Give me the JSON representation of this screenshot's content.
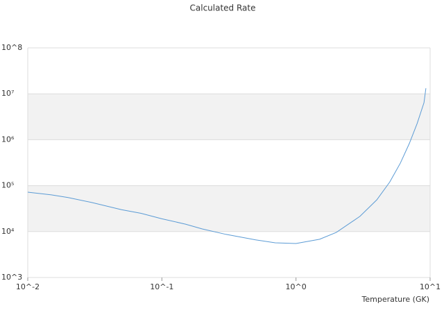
{
  "chart_data": {
    "type": "line",
    "title": "Calculated Rate",
    "x_label": "Temperature (GK)",
    "xscale": "log",
    "yscale": "log",
    "grid": true,
    "color": "#5b9bd5",
    "x": [
      0.01,
      0.015,
      0.02,
      0.03,
      0.05,
      0.07,
      0.1,
      0.15,
      0.2,
      0.3,
      0.5,
      0.7,
      1,
      1.5,
      2,
      3,
      4,
      5,
      6,
      7,
      8,
      9,
      9.3
    ],
    "values": [
      72000,
      63000,
      55000,
      43000,
      30000,
      25000,
      19000,
      14500,
      11400,
      8700,
      6600,
      5700,
      5500,
      6800,
      9600,
      21500,
      49000,
      120000,
      310000,
      830000,
      2250000,
      6400000,
      13200000
    ],
    "xlim": [
      0.01,
      10
    ],
    "xticks": [
      {
        "value": 0.01,
        "label": "10^-2"
      },
      {
        "value": 0.1,
        "label": "10^-1"
      },
      {
        "value": 1,
        "label": "10^0"
      },
      {
        "value": 10,
        "label": "10^1"
      }
    ],
    "ylim": [
      1000,
      100000000
    ],
    "yticks": [
      {
        "value": 1000,
        "label": "10^3"
      },
      {
        "value": 10000,
        "label": "10⁴"
      },
      {
        "value": 100000,
        "label": "10⁵"
      },
      {
        "value": 1000000,
        "label": "10⁶"
      },
      {
        "value": 10000000,
        "label": "10⁷"
      },
      {
        "value": 100000000,
        "label": "10^8"
      }
    ]
  }
}
